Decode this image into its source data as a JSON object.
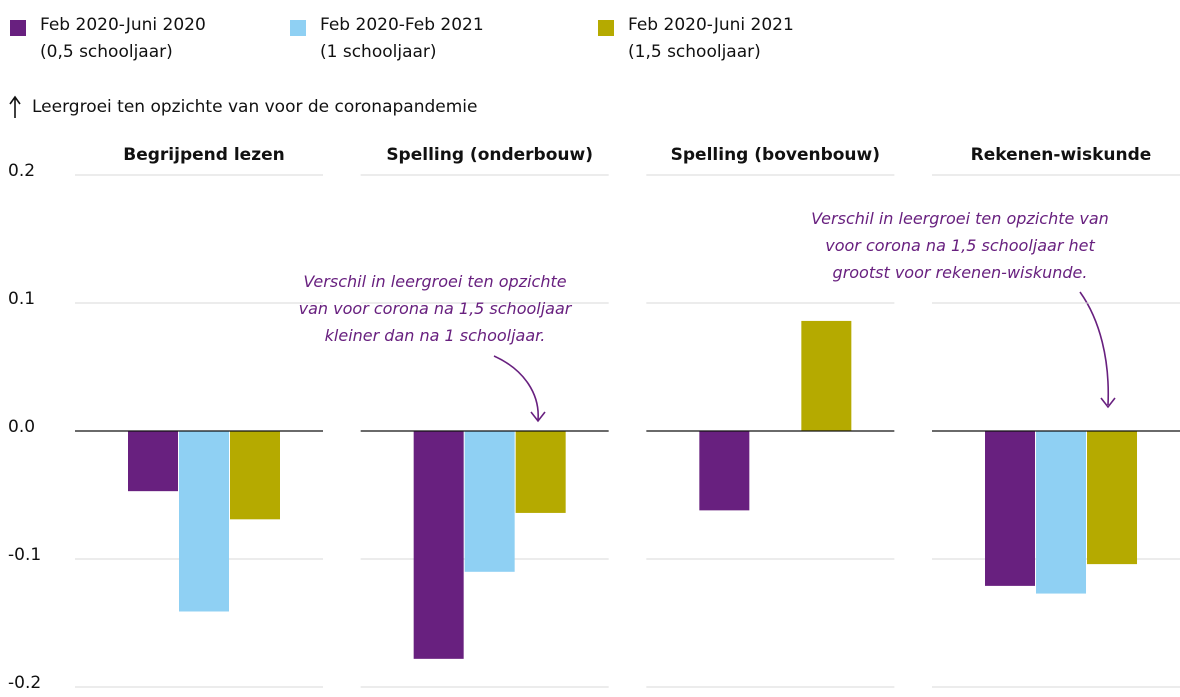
{
  "chart_data": {
    "type": "bar",
    "y_label": "Leergroei ten opzichte van voor de coronapandemie",
    "categories": [
      "Begrijpend lezen",
      "Spelling (onderbouw)",
      "Spelling (bovenbouw)",
      "Rekenen-wiskunde"
    ],
    "series": [
      {
        "name": "Feb 2020-Juni 2020\n(0,5 schooljaar)",
        "color": "#68207f",
        "values": [
          -0.047,
          -0.178,
          -0.062,
          -0.121
        ]
      },
      {
        "name": "Feb 2020-Feb 2021\n(1 schooljaar)",
        "color": "#8fd0f3",
        "values": [
          -0.141,
          -0.11,
          null,
          -0.127
        ]
      },
      {
        "name": "Feb 2020-Juni 2021\n(1,5 schooljaar)",
        "color": "#b5aa00",
        "values": [
          -0.069,
          -0.064,
          0.086,
          -0.104
        ]
      }
    ],
    "ylim": [
      -0.2,
      0.2
    ],
    "yticks": [
      0.2,
      0.1,
      {
        "value": 0,
        "label": "0.0"
      },
      -0.1,
      -0.2
    ],
    "grid": true,
    "annotations": [
      "Verschil in leergroei ten opzichte\nvan voor corona na 1,5 schooljaar\nkleiner dan na 1 schooljaar.",
      "Verschil in leergroei ten opzichte van\nvoor corona na 1,5 schooljaar het\ngrootst voor rekenen-wiskunde."
    ]
  }
}
